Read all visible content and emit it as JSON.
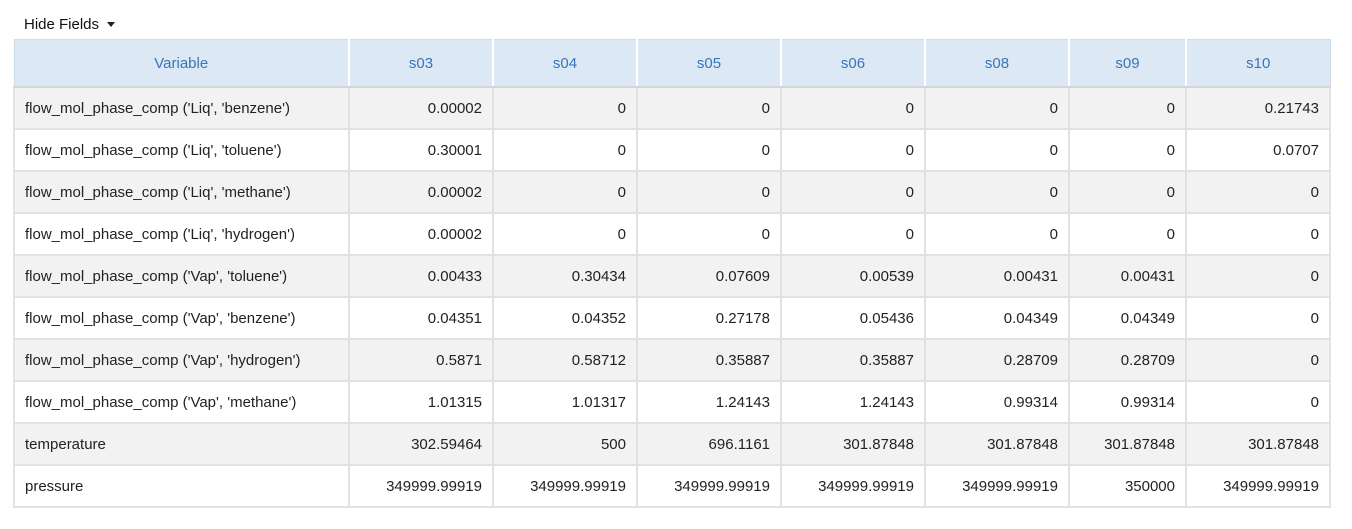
{
  "toolbar": {
    "hide_fields_label": "Hide Fields"
  },
  "table": {
    "headers": [
      "Variable",
      "s03",
      "s04",
      "s05",
      "s06",
      "s08",
      "s09",
      "s10"
    ],
    "rows": [
      [
        "flow_mol_phase_comp ('Liq', 'benzene')",
        "0.00002",
        "0",
        "0",
        "0",
        "0",
        "0",
        "0.21743"
      ],
      [
        "flow_mol_phase_comp ('Liq', 'toluene')",
        "0.30001",
        "0",
        "0",
        "0",
        "0",
        "0",
        "0.0707"
      ],
      [
        "flow_mol_phase_comp ('Liq', 'methane')",
        "0.00002",
        "0",
        "0",
        "0",
        "0",
        "0",
        "0"
      ],
      [
        "flow_mol_phase_comp ('Liq', 'hydrogen')",
        "0.00002",
        "0",
        "0",
        "0",
        "0",
        "0",
        "0"
      ],
      [
        "flow_mol_phase_comp ('Vap', 'toluene')",
        "0.00433",
        "0.30434",
        "0.07609",
        "0.00539",
        "0.00431",
        "0.00431",
        "0"
      ],
      [
        "flow_mol_phase_comp ('Vap', 'benzene')",
        "0.04351",
        "0.04352",
        "0.27178",
        "0.05436",
        "0.04349",
        "0.04349",
        "0"
      ],
      [
        "flow_mol_phase_comp ('Vap', 'hydrogen')",
        "0.5871",
        "0.58712",
        "0.35887",
        "0.35887",
        "0.28709",
        "0.28709",
        "0"
      ],
      [
        "flow_mol_phase_comp ('Vap', 'methane')",
        "1.01315",
        "1.01317",
        "1.24143",
        "1.24143",
        "0.99314",
        "0.99314",
        "0"
      ],
      [
        "temperature",
        "302.59464",
        "500",
        "696.1161",
        "301.87848",
        "301.87848",
        "301.87848",
        "301.87848"
      ],
      [
        "pressure",
        "349999.99919",
        "349999.99919",
        "349999.99919",
        "349999.99919",
        "349999.99919",
        "350000",
        "349999.99919"
      ]
    ]
  },
  "colors": {
    "header_bg": "#dce9f5",
    "header_text": "#3a74b8",
    "row_odd_bg": "#f2f2f2",
    "row_even_bg": "#ffffff",
    "border": "#e2e2e2"
  }
}
